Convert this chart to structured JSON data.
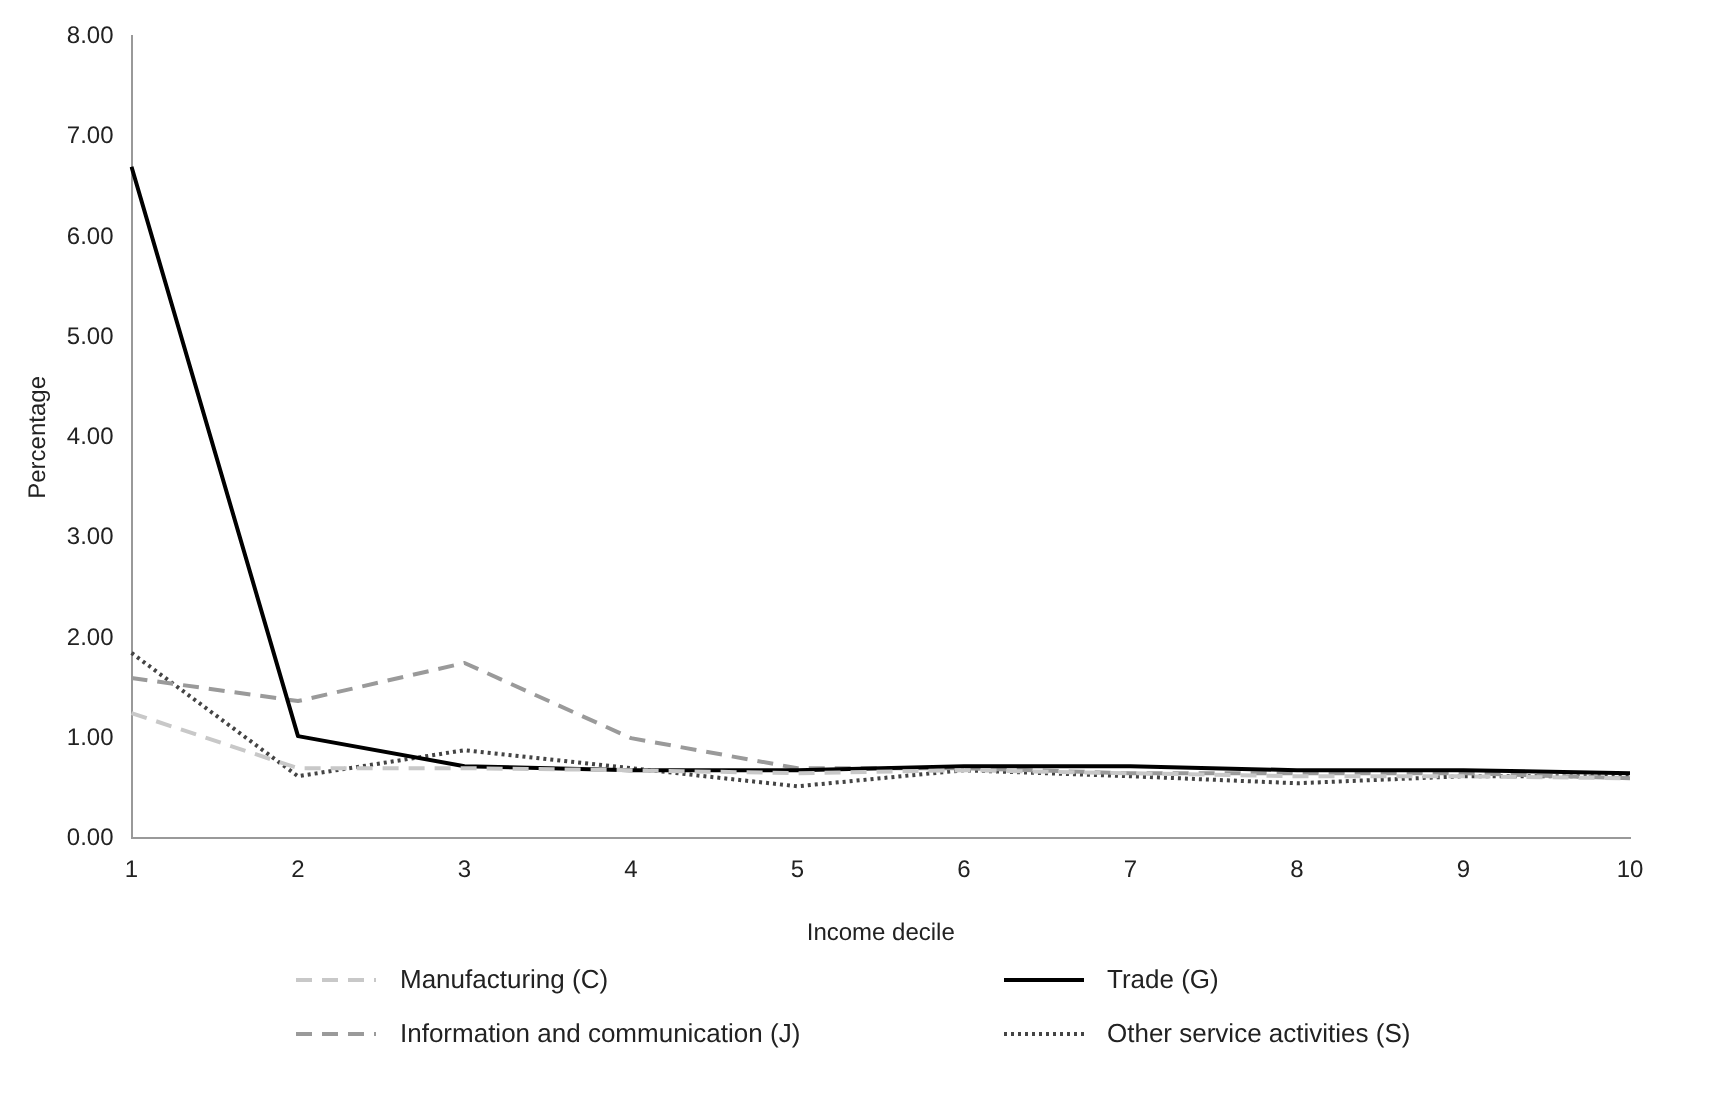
{
  "chart_data": {
    "type": "line",
    "xlabel": "Income decile",
    "ylabel": "Percentage",
    "categories": [
      "1",
      "2",
      "3",
      "4",
      "5",
      "6",
      "7",
      "8",
      "9",
      "10"
    ],
    "series": [
      {
        "name": "Manufacturing (C)",
        "color": "#c8c8c8",
        "line_style": "dashed",
        "values": [
          1.25,
          0.7,
          0.7,
          0.68,
          0.65,
          0.68,
          0.65,
          0.62,
          0.62,
          0.6
        ]
      },
      {
        "name": "Trade (G)",
        "color": "#000000",
        "line_style": "solid",
        "values": [
          6.7,
          1.02,
          0.72,
          0.68,
          0.68,
          0.72,
          0.72,
          0.68,
          0.68,
          0.65
        ]
      },
      {
        "name": "Information and communication (J)",
        "color": "#9a9a9a",
        "line_style": "dashed",
        "values": [
          1.6,
          1.37,
          1.75,
          1.0,
          0.7,
          0.7,
          0.65,
          0.65,
          0.65,
          0.6
        ]
      },
      {
        "name": "Other service activities (S)",
        "color": "#444444",
        "line_style": "dotted",
        "values": [
          1.85,
          0.62,
          0.88,
          0.7,
          0.52,
          0.68,
          0.62,
          0.55,
          0.62,
          0.62
        ]
      }
    ],
    "ylim": [
      0,
      8
    ],
    "yticks": [
      {
        "value": 0,
        "label": "0.00"
      },
      {
        "value": 1,
        "label": "1.00"
      },
      {
        "value": 2,
        "label": "2.00"
      },
      {
        "value": 3,
        "label": "3.00"
      },
      {
        "value": 4,
        "label": "4.00"
      },
      {
        "value": 5,
        "label": "5.00"
      },
      {
        "value": 6,
        "label": "6.00"
      },
      {
        "value": 7,
        "label": "7.00"
      },
      {
        "value": 8,
        "label": "8.00"
      }
    ],
    "grid": false,
    "legend": "bottom",
    "marker": "none"
  }
}
